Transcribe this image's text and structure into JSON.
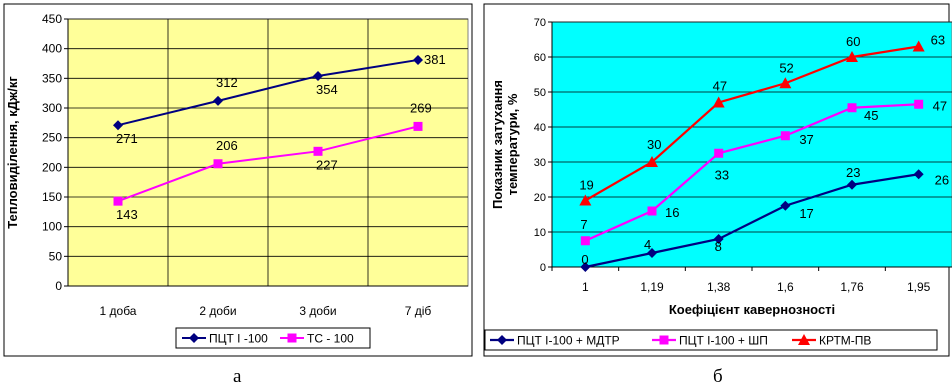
{
  "chart_data": [
    {
      "type": "line",
      "plot_bg": "#FFFF99",
      "ylabel": "Тепловиділення, кДж/кг",
      "ylim": [
        0,
        450
      ],
      "yticks": [
        0,
        50,
        100,
        150,
        200,
        250,
        300,
        350,
        400,
        450
      ],
      "ytick_labels": [
        "0",
        "50",
        "100",
        "150",
        "200",
        "250",
        "300",
        "350",
        "400",
        "450"
      ],
      "grid": true,
      "categories": [
        "1 доба",
        "2 доби",
        "3 доби",
        "7  діб"
      ],
      "series": [
        {
          "name": "ПЦТ І -100",
          "color": "#000080",
          "marker": "diamond",
          "values": [
            271,
            312,
            354,
            381
          ],
          "labels": [
            "271",
            "312",
            "354",
            "381"
          ]
        },
        {
          "name": "ТС - 100",
          "color": "#FF00FF",
          "marker": "square",
          "values": [
            143,
            206,
            227,
            269
          ],
          "labels": [
            "143",
            "206",
            "227",
            "269"
          ]
        }
      ],
      "legend": "bottom",
      "caption": "а"
    },
    {
      "type": "line",
      "plot_bg": "#00FFFF",
      "xlabel": "Коефіцієнт кавернозності",
      "ylabel_line1": "Показник затухання",
      "ylabel_line2": "температури, %",
      "ylim": [
        0,
        70
      ],
      "yticks": [
        0,
        10,
        20,
        30,
        40,
        50,
        60,
        70
      ],
      "ytick_labels": [
        "0",
        "10",
        "20",
        "30",
        "40",
        "50",
        "60",
        "70"
      ],
      "grid": true,
      "categories": [
        "1",
        "1,19",
        "1,38",
        "1,6",
        "1,76",
        "1,95"
      ],
      "series": [
        {
          "name": "ПЦТ І-100 + МДТР",
          "color": "#000080",
          "marker": "diamond",
          "values": [
            0,
            4,
            8,
            17.5,
            23.5,
            26.5
          ],
          "labels": [
            "0",
            "4",
            "8",
            "17",
            "23",
            "26"
          ]
        },
        {
          "name": "ПЦТ І-100 + ШП",
          "color": "#FF00FF",
          "marker": "square",
          "values": [
            7.5,
            16,
            32.5,
            37.5,
            45.5,
            46.5
          ],
          "labels": [
            "7",
            "16",
            "33",
            "37",
            "45",
            "47"
          ]
        },
        {
          "name": "КРТМ-ПВ",
          "color": "#FF0000",
          "marker": "triangle",
          "values": [
            19,
            30,
            47,
            52.5,
            60,
            63
          ],
          "labels": [
            "19",
            "30",
            "47",
            "52",
            "60",
            "63"
          ]
        }
      ],
      "legend": "bottom",
      "caption": "б"
    }
  ]
}
